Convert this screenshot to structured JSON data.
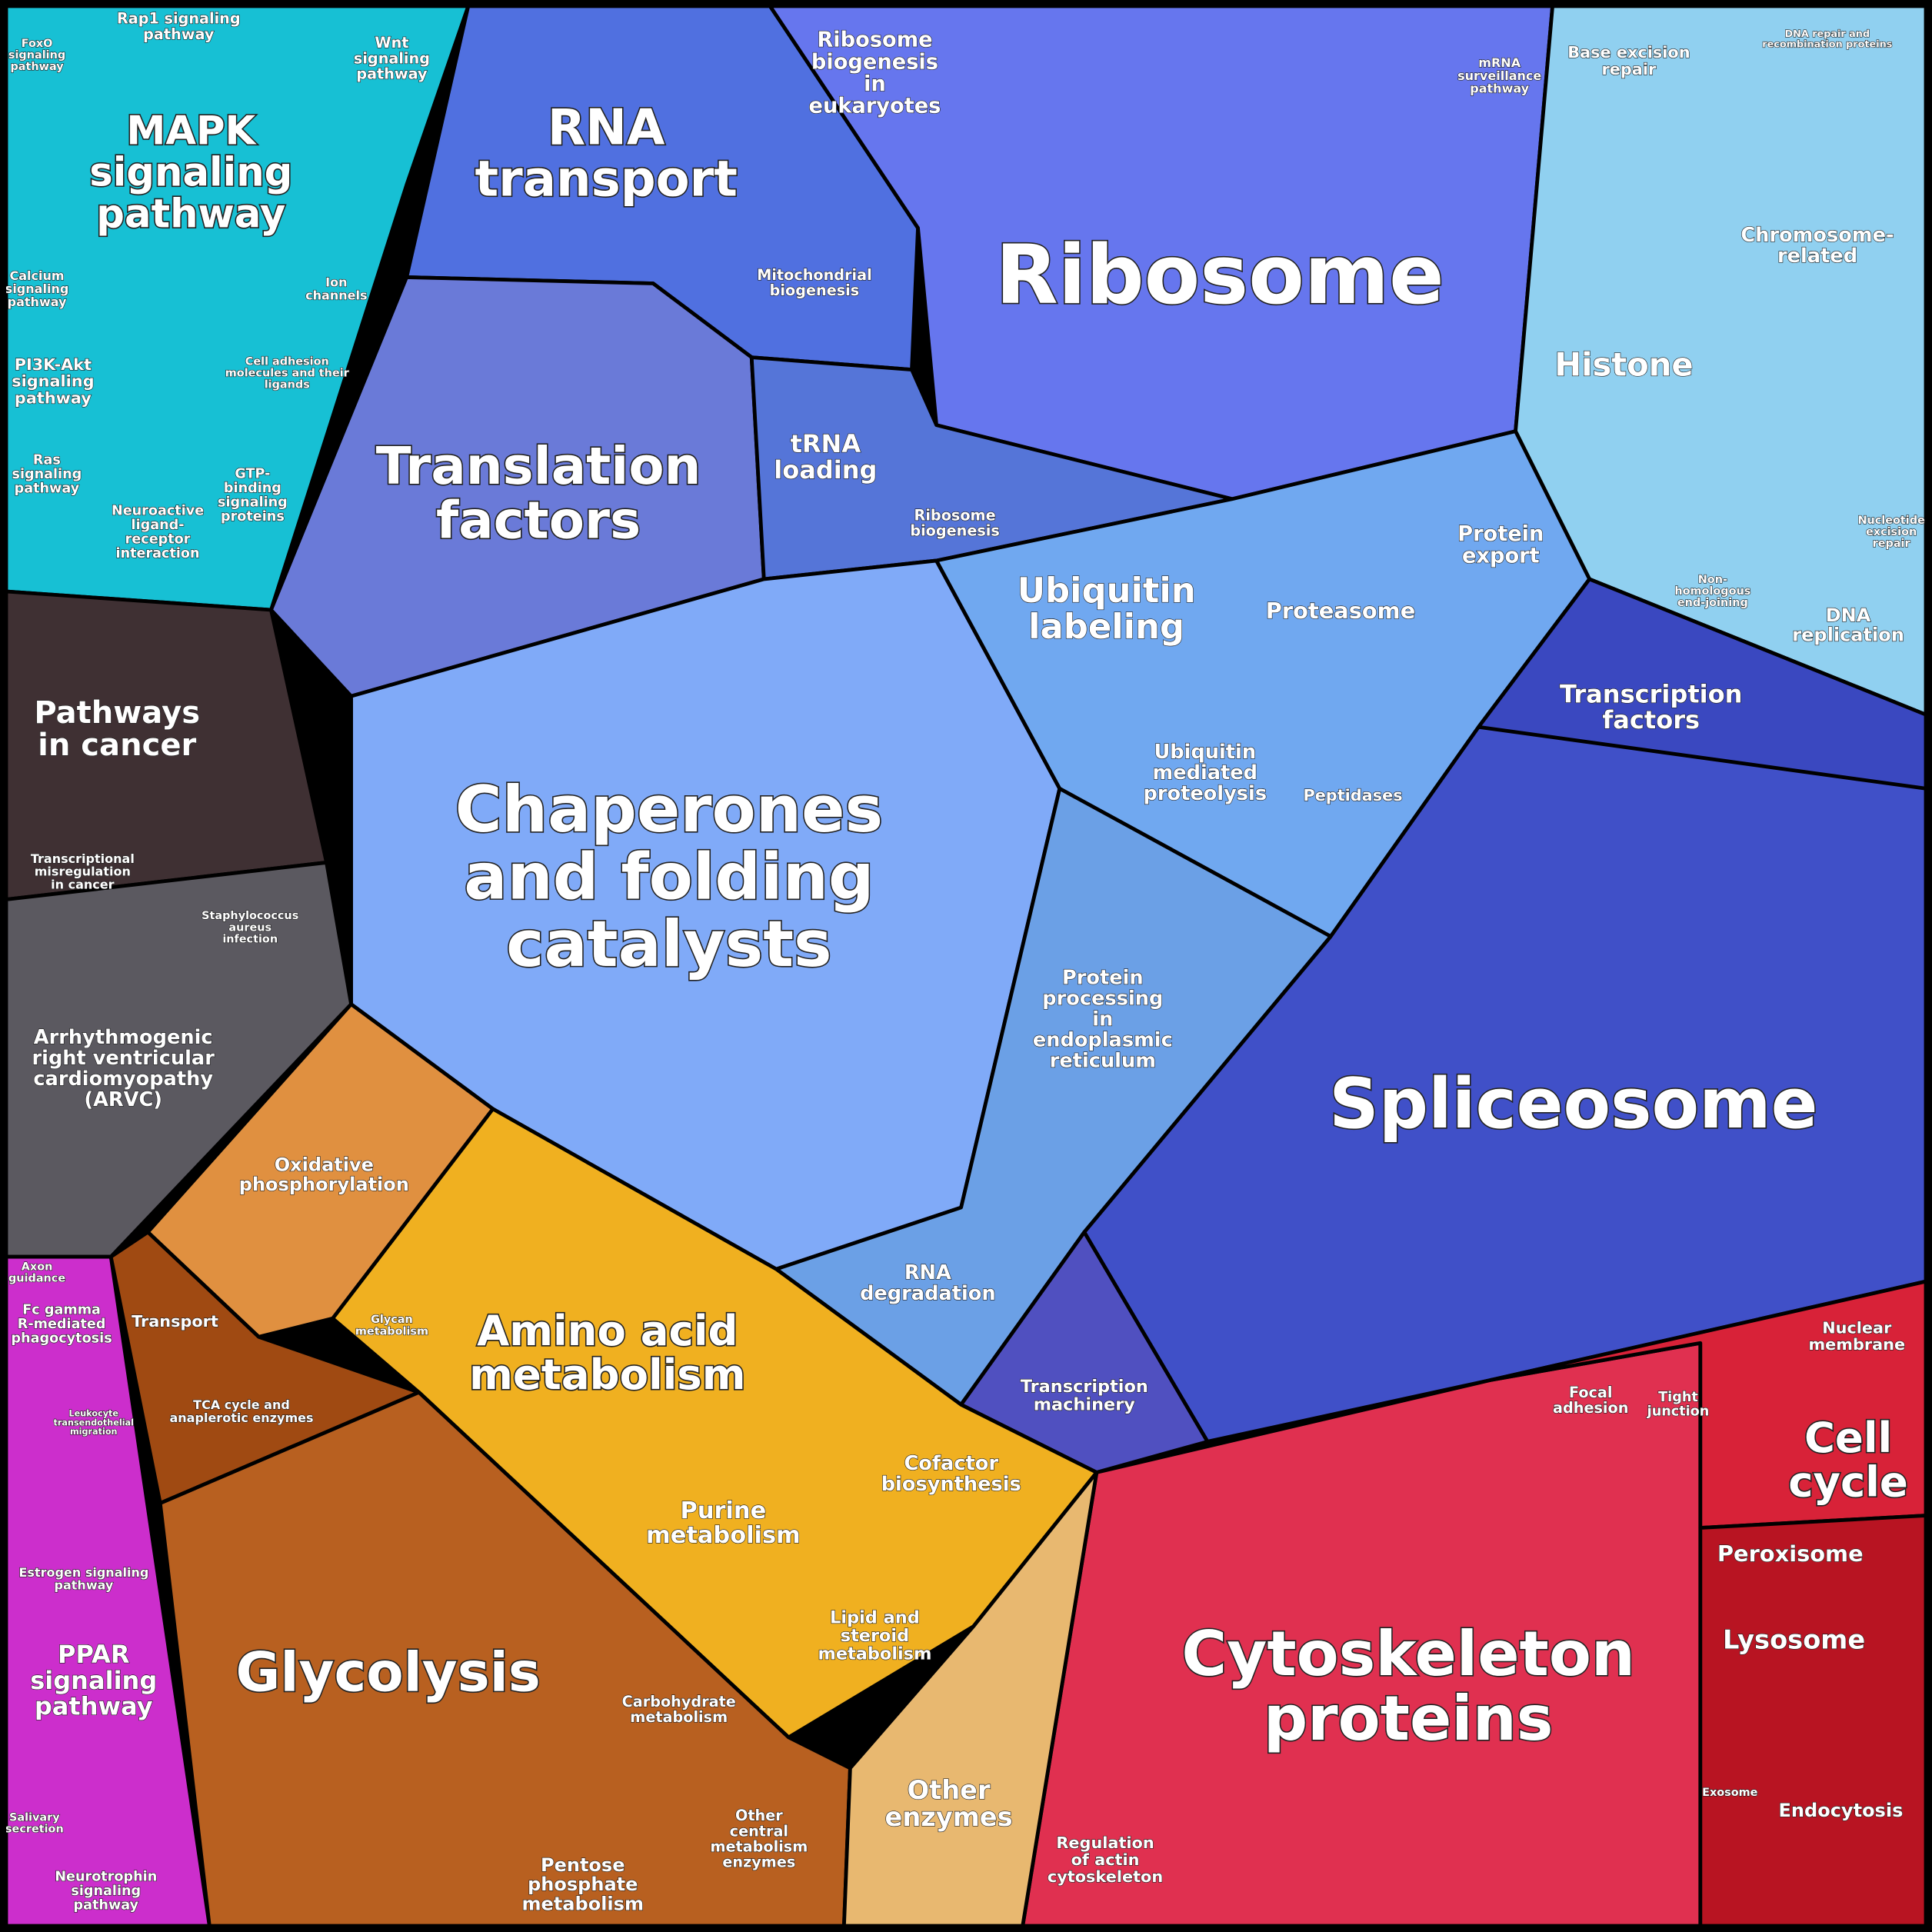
{
  "labels": [
    [
      "Rap1 signaling",
      "pathway"
    ],
    [
      "Wnt",
      "signaling",
      "pathway"
    ],
    [
      "MAPK",
      "signaling",
      "pathway"
    ],
    [
      "FoxO",
      "signaling",
      "pathway"
    ],
    [
      "Calcium",
      "signaling",
      "pathway"
    ],
    [
      "PI3K-Akt",
      "signaling",
      "pathway"
    ],
    [
      "Ras",
      "signaling",
      "pathway"
    ],
    [
      "Ion",
      "channels"
    ],
    [
      "Cell adhesion",
      "molecules and their",
      "ligands"
    ],
    [
      "GTP-",
      "binding",
      "signaling",
      "proteins"
    ],
    [
      "Neuroactive",
      "ligand-",
      "receptor",
      "interaction"
    ],
    [
      "RNA",
      "transport"
    ],
    [
      "Ribosome",
      "biogenesis",
      "in",
      "eukaryotes"
    ],
    [
      "mRNA",
      "surveillance",
      "pathway"
    ],
    [
      "Mitochondrial",
      "biogenesis"
    ],
    [
      "Ribosome"
    ],
    [
      "Translation",
      "factors"
    ],
    [
      "tRNA",
      "loading"
    ],
    [
      "Ribosome",
      "biogenesis"
    ],
    [
      "Base excision",
      "repair"
    ],
    [
      "DNA repair and",
      "recombination proteins"
    ],
    [
      "Chromosome-",
      "related"
    ],
    [
      "Histone"
    ],
    [
      "Nucleotide",
      "excision",
      "repair"
    ],
    [
      "Non-",
      "homologous",
      "end-joining"
    ],
    [
      "DNA",
      "replication"
    ],
    [
      "Protein",
      "export"
    ],
    [
      "Ubiquitin",
      "labeling"
    ],
    [
      "Proteasome"
    ],
    [
      "Transcription",
      "factors"
    ],
    [
      "Ubiquitin",
      "mediated",
      "proteolysis"
    ],
    [
      "Peptidases"
    ],
    [
      "Chaperones",
      "and folding",
      "catalysts"
    ],
    [
      "Protein",
      "processing",
      "in",
      "endoplasmic",
      "reticulum"
    ],
    [
      "Spliceosome"
    ],
    [
      "RNA",
      "degradation"
    ],
    [
      "Transcription",
      "machinery"
    ],
    [
      "Pathways",
      "in cancer"
    ],
    [
      "Transcriptional",
      "misregulation",
      "in cancer"
    ],
    [
      "Staphylococcus",
      "aureus",
      "infection"
    ],
    [
      "Arrhythmogenic",
      "right ventricular",
      "cardiomyopathy",
      "(ARVC)"
    ],
    [
      "Oxidative",
      "phosphorylation"
    ],
    [
      "Transport"
    ],
    [
      "TCA cycle and",
      "anaplerotic enzymes"
    ],
    [
      "Glycan",
      "metabolism"
    ],
    [
      "Amino acid",
      "metabolism"
    ],
    [
      "Cofactor",
      "biosynthesis"
    ],
    [
      "Purine",
      "metabolism"
    ],
    [
      "Lipid and",
      "steroid",
      "metabolism"
    ],
    [
      "Glycolysis"
    ],
    [
      "Carbohydrate",
      "metabolism"
    ],
    [
      "Other",
      "central",
      "metabolism",
      "enzymes"
    ],
    [
      "Pentose",
      "phosphate",
      "metabolism"
    ],
    [
      "Other",
      "enzymes"
    ],
    [
      "Axon",
      "guidance"
    ],
    [
      "Fc gamma",
      "R-mediated",
      "phagocytosis"
    ],
    [
      "Leukocyte",
      "transendothelial",
      "migration"
    ],
    [
      "Estrogen signaling",
      "pathway"
    ],
    [
      "PPAR",
      "signaling",
      "pathway"
    ],
    [
      "Salivary",
      "secretion"
    ],
    [
      "Neurotrophin",
      "signaling",
      "pathway"
    ],
    [
      "Nuclear",
      "membrane"
    ],
    [
      "Focal",
      "adhesion"
    ],
    [
      "Tight",
      "junction"
    ],
    [
      "Cell",
      "cycle"
    ],
    [
      "Peroxisome"
    ],
    [
      "Lysosome"
    ],
    [
      "Cytoskeleton",
      "proteins"
    ],
    [
      "Regulation",
      "of actin",
      "cytoskeleton"
    ],
    [
      "Endocytosis"
    ],
    [
      "Exosome"
    ]
  ]
}
